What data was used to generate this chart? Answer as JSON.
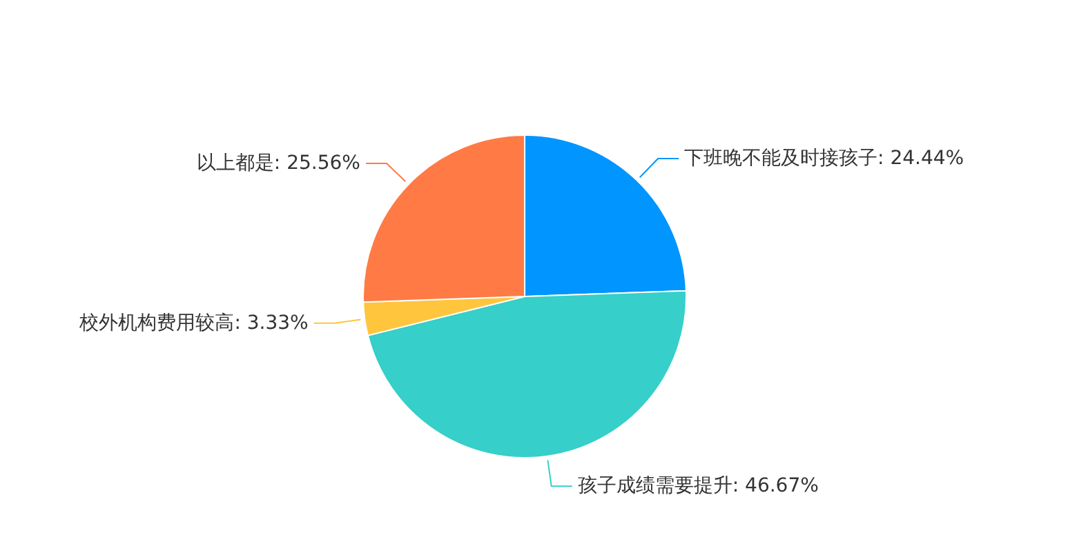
{
  "chart_data": {
    "type": "pie",
    "categories": [
      "下班晚不能及时接孩子",
      "孩子成绩需要提升",
      "校外机构费用较高",
      "以上都是"
    ],
    "values": [
      24.44,
      46.67,
      3.33,
      25.56
    ],
    "colors": [
      "#0095ff",
      "#36cfc9",
      "#ffc53d",
      "#ff7a45"
    ],
    "value_labels": [
      "24.44%",
      "46.67%",
      "3.33%",
      "25.56%"
    ],
    "legend": false
  }
}
